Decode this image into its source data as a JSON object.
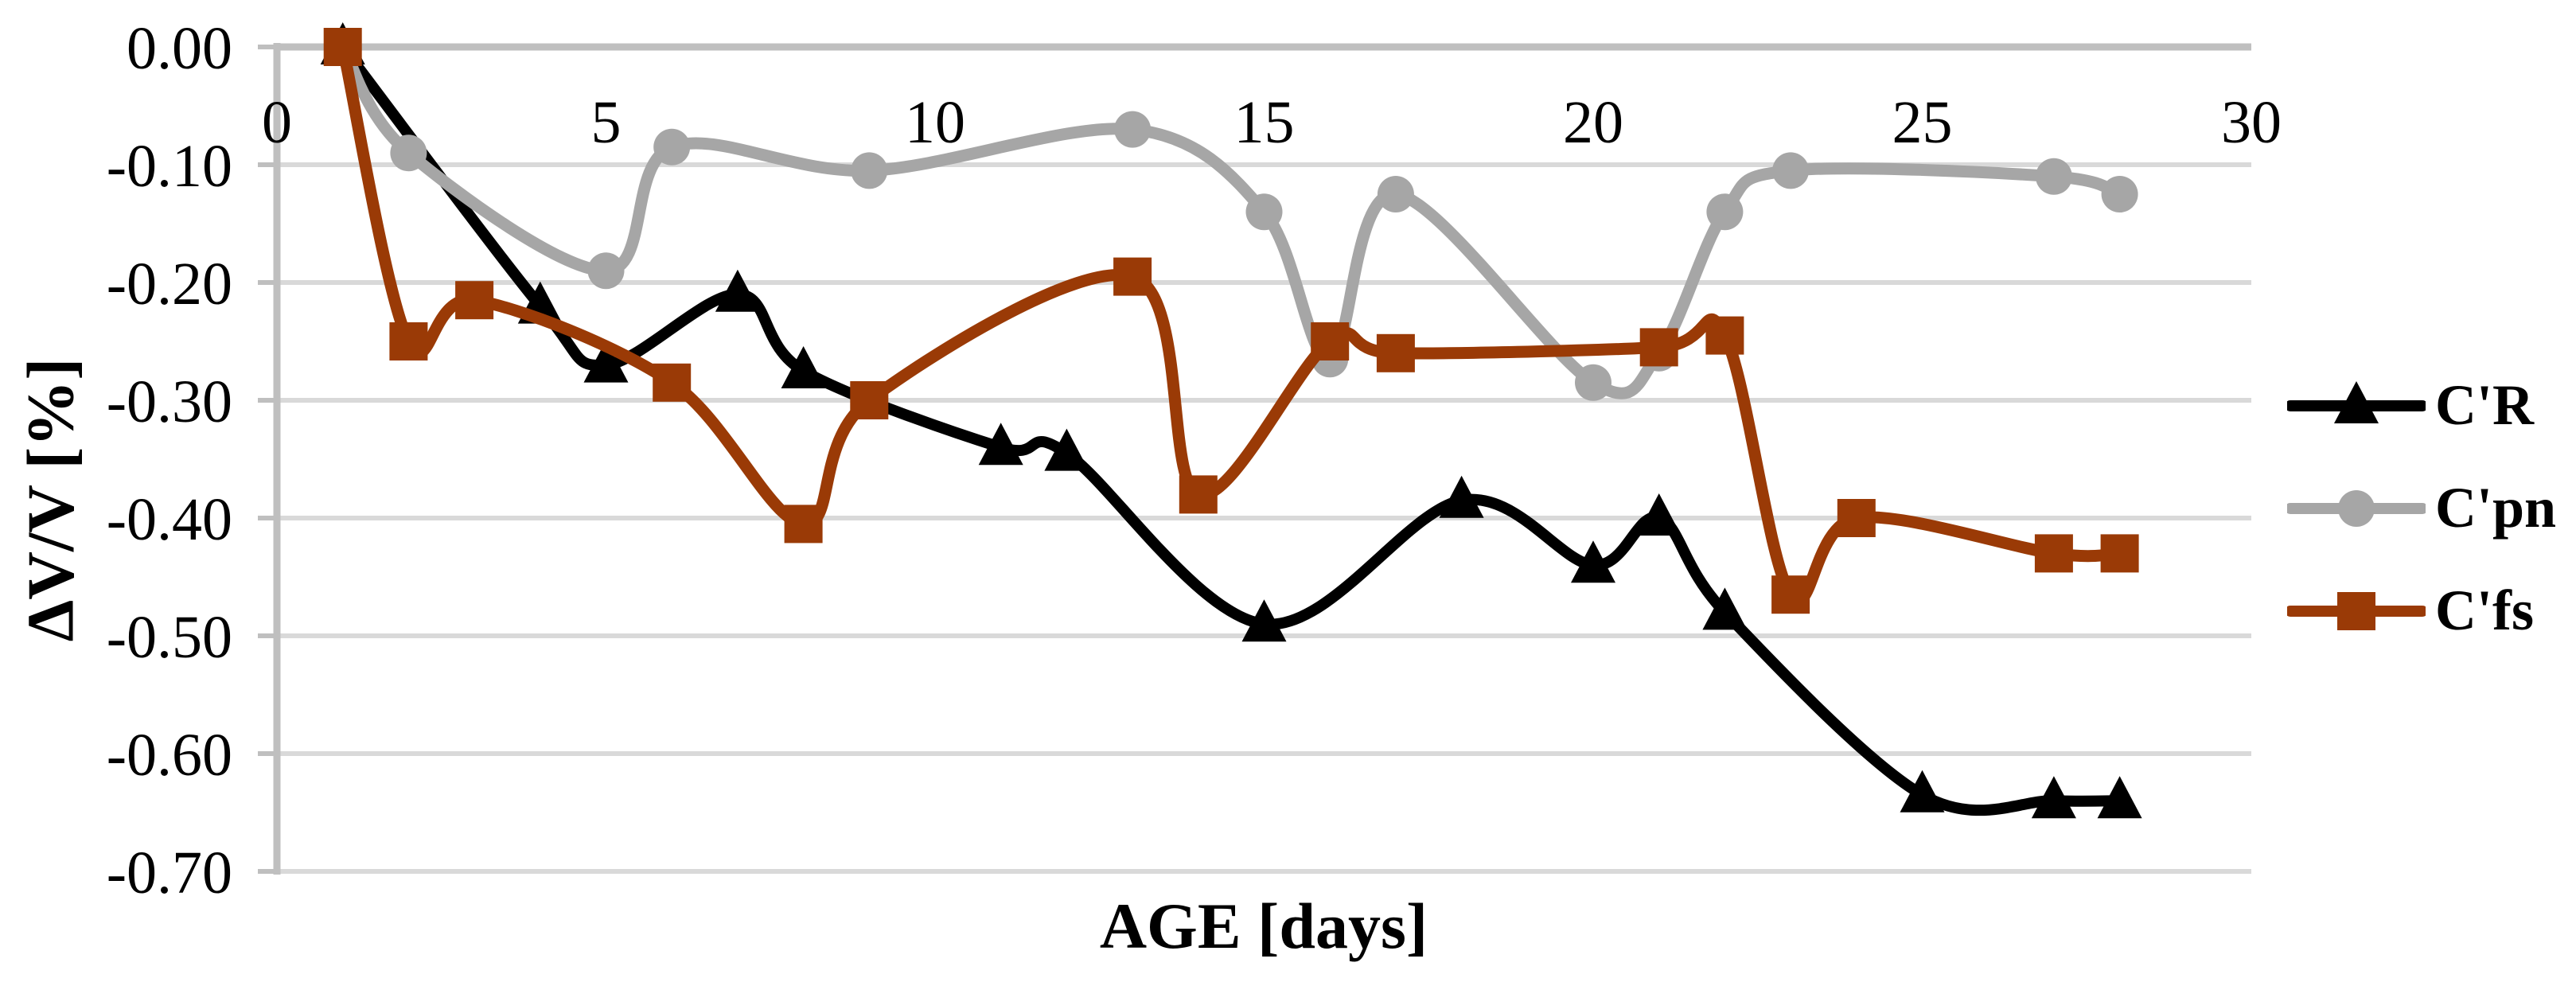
{
  "chart_data": {
    "type": "line",
    "smooth": true,
    "title": "",
    "xlabel": "AGE [days]",
    "ylabel": "ΔV/V [%]",
    "xlim": [
      0,
      30
    ],
    "ylim": [
      -0.7,
      0.0
    ],
    "grid": true,
    "legend_position": "right",
    "x_tick_values": [
      0,
      5,
      10,
      15,
      20,
      25,
      30
    ],
    "x_tick_labels": [
      "0",
      "5",
      "10",
      "15",
      "20",
      "25",
      "30"
    ],
    "y_tick_values": [
      0.0,
      -0.1,
      -0.2,
      -0.3,
      -0.4,
      -0.5,
      -0.6,
      -0.7
    ],
    "y_tick_labels": [
      "0.00",
      "-0.10",
      "-0.20",
      "-0.30",
      "-0.40",
      "-0.50",
      "-0.60",
      "-0.70"
    ],
    "colors": {
      "gridline": "#D9D9D9",
      "axis": "#BFBFBF",
      "text": "#000000",
      "background": "#FFFFFF"
    },
    "series": [
      {
        "name": "C'R",
        "color": "#000000",
        "marker": "triangle",
        "x": [
          1,
          4,
          5,
          7,
          8,
          11,
          12,
          15,
          18,
          20,
          21,
          22,
          25,
          27,
          28
        ],
        "y": [
          0.0,
          -0.22,
          -0.27,
          -0.21,
          -0.275,
          -0.34,
          -0.345,
          -0.49,
          -0.385,
          -0.44,
          -0.4,
          -0.48,
          -0.635,
          -0.64,
          -0.64
        ]
      },
      {
        "name": "C'pn",
        "color": "#A6A6A6",
        "marker": "circle",
        "x": [
          1,
          2,
          5,
          6,
          9,
          13,
          15,
          16,
          17,
          20,
          21,
          22,
          23,
          27,
          28
        ],
        "y": [
          0.0,
          -0.09,
          -0.19,
          -0.085,
          -0.105,
          -0.07,
          -0.14,
          -0.265,
          -0.125,
          -0.285,
          -0.26,
          -0.14,
          -0.105,
          -0.11,
          -0.125
        ]
      },
      {
        "name": "C'fs",
        "color": "#9A3A06",
        "marker": "square",
        "x": [
          1,
          2,
          3,
          6,
          8,
          9,
          13,
          14,
          16,
          17,
          21,
          22,
          23,
          24,
          27,
          28
        ],
        "y": [
          0.0,
          -0.25,
          -0.215,
          -0.285,
          -0.405,
          -0.3,
          -0.195,
          -0.38,
          -0.25,
          -0.26,
          -0.255,
          -0.245,
          -0.465,
          -0.4,
          -0.43,
          -0.43
        ]
      }
    ]
  }
}
